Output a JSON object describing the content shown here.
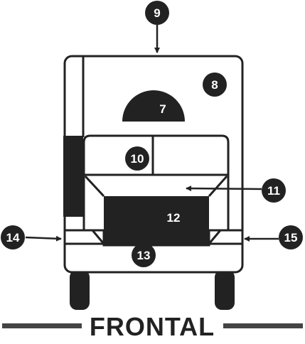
{
  "caption": "FRONTAL",
  "callouts": {
    "c7": "7",
    "c8": "8",
    "c9": "9",
    "c10": "10",
    "c11": "11",
    "c12": "12",
    "c13": "13",
    "c14": "14",
    "c15": "15"
  },
  "colors": {
    "stroke": "#222222",
    "fill_dark": "#222222",
    "background": "#ffffff"
  }
}
